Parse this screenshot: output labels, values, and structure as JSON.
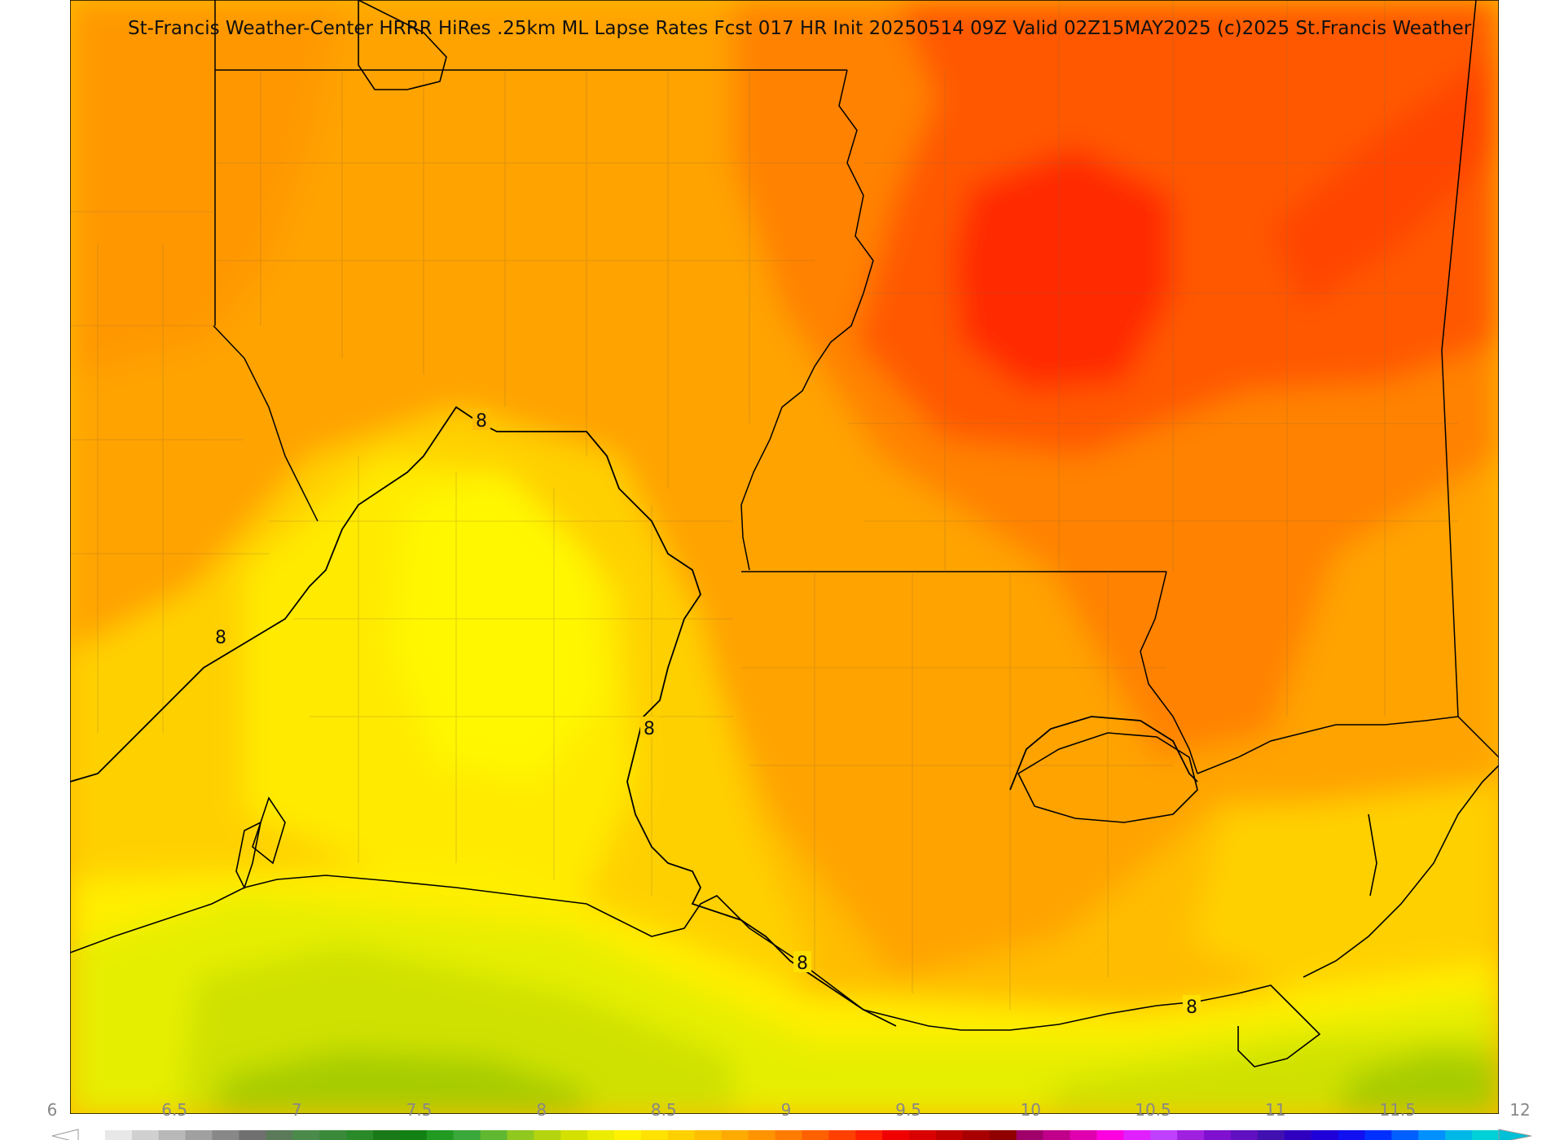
{
  "header": {
    "title": "St-Francis Weather-Center HRRR HiRes .25km ML Lapse Rates  Fcst 017 HR Init 20250514 09Z  Valid 02Z15MAY2025   (c)2025 St.Francis Weather"
  },
  "map": {
    "contour_labels": [
      "8",
      "8",
      "8",
      "8",
      "8"
    ],
    "colors": {
      "deep_red": "#ff2a00",
      "red_orange": "#ff5800",
      "orange": "#ff8200",
      "light_orange": "#ffa300",
      "amber": "#ffbc00",
      "gold": "#ffd000",
      "yellow": "#ffea00",
      "bright_yellow": "#fff700",
      "yellow_green": "#e6ee00",
      "lime": "#cfe100",
      "olive": "#a6cc00",
      "border": "#000000"
    }
  },
  "colorbar": {
    "labels": [
      "6",
      "6.5",
      "7",
      "7.5",
      "8",
      "8.5",
      "9",
      "9.5",
      "10",
      "10.5",
      "11",
      "11.5",
      "12"
    ],
    "colors": [
      "#ffffff",
      "#e8e8e8",
      "#d0d0d0",
      "#b8b8b8",
      "#a0a0a0",
      "#888888",
      "#707070",
      "#5a7a5a",
      "#4a8a4a",
      "#3a8a3a",
      "#2a8a2a",
      "#1a7a1a",
      "#138013",
      "#229a22",
      "#3aa83a",
      "#60b830",
      "#90c820",
      "#b4d410",
      "#d4e000",
      "#ecec00",
      "#fff200",
      "#ffe200",
      "#ffd000",
      "#ffbe00",
      "#ffaa00",
      "#ff9400",
      "#ff7c00",
      "#ff6000",
      "#ff4000",
      "#ff2000",
      "#f00000",
      "#d80000",
      "#c00000",
      "#a80000",
      "#900000",
      "#a0006a",
      "#c0008a",
      "#e000b0",
      "#ff00e0",
      "#e020ff",
      "#c040ff",
      "#a020e0",
      "#8010d0",
      "#6010c0",
      "#4010b0",
      "#3000c0",
      "#2000d8",
      "#1010f0",
      "#0030ff",
      "#0060ff",
      "#0090ff",
      "#00b8e8",
      "#00d0d8"
    ]
  }
}
